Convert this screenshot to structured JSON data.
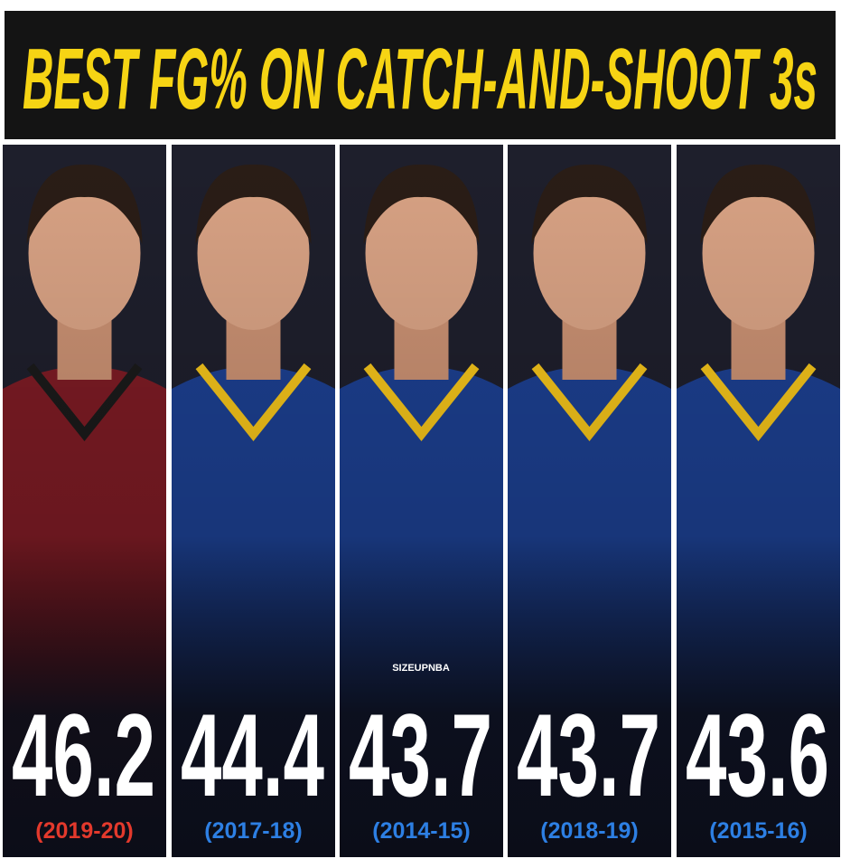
{
  "title": "BEST FG% ON CATCH-AND-SHOOT 3s",
  "watermark": "SIZEUPNBA",
  "panels": [
    {
      "value": 46.2,
      "season": "(2019-20)",
      "season_color": "#e3392c",
      "jersey": "#7c1b24",
      "trim": "#1a1a1a"
    },
    {
      "value": 44.4,
      "season": "(2017-18)",
      "season_color": "#2d7fe3",
      "jersey": "#1c3f8f",
      "trim": "#f2c21a"
    },
    {
      "value": 43.7,
      "season": "(2014-15)",
      "season_color": "#2d7fe3",
      "jersey": "#1c3f8f",
      "trim": "#f2c21a"
    },
    {
      "value": 43.7,
      "season": "(2018-19)",
      "season_color": "#2d7fe3",
      "jersey": "#1c3f8f",
      "trim": "#f2c21a"
    },
    {
      "value": 43.6,
      "season": "(2015-16)",
      "season_color": "#2d7fe3",
      "jersey": "#1c3f8f",
      "trim": "#f2c21a"
    }
  ]
}
